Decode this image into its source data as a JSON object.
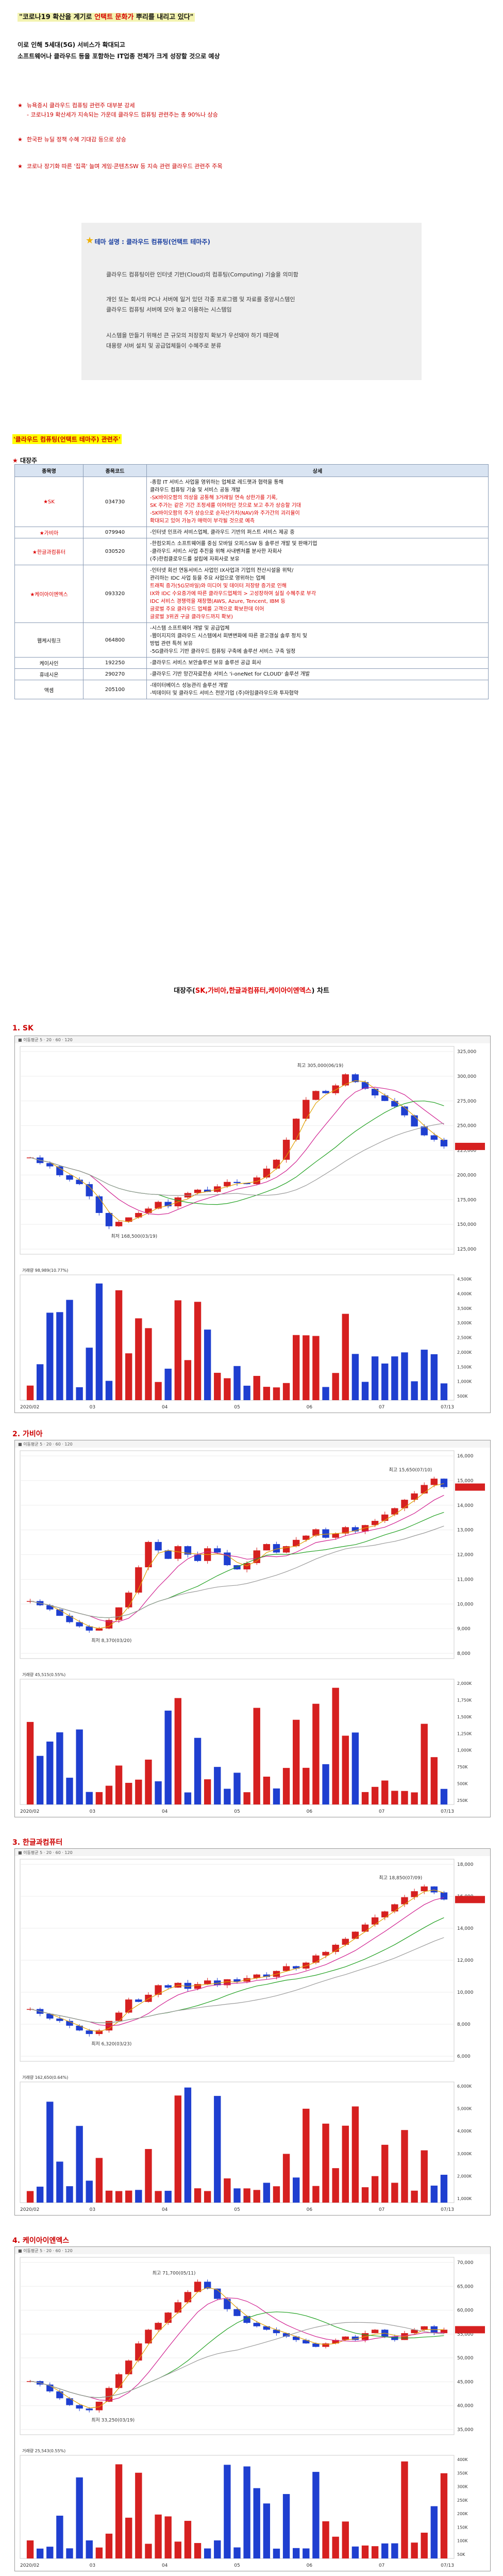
{
  "header": {
    "headline_pre": "\"코로나19 확산을 계기로 ",
    "headline_red": "언택트 문화가",
    "headline_post": " 뿌리를 내리고 있다\"",
    "intro_line1": "이로 인해 5세대(5G) 서비스가 확대되고",
    "intro_line2": "소프트웨어나 클라우드 등을 포함하는 IT업종 전체가 크게 성장할 것으로 예상"
  },
  "bullets": [
    {
      "text": "뉴욕증시 클라우드 컴퓨팅 관련주 대부분 강세",
      "sub": "- 코로나19 확산세가 지속되는 가운데 클라우드 컴퓨팅 관련주는 총 90%나 상승"
    },
    {
      "text": "한국판 뉴딜 정책 수혜 기대감 등으로 상승",
      "sub": ""
    },
    {
      "text": "코로나 장기화 따른 '집콕' 늘며 게임·콘텐츠SW 등 지속 관련 클라우드 관련주 주목",
      "sub": ""
    }
  ],
  "theme": {
    "title_label": "테마 설명 : 클라우드 컴퓨팅(언택트 테마주)",
    "p1": "클라우드 컴퓨팅이란 인터넷 기반(Cloud)의 컴퓨팅(Computing) 기술을 의미함",
    "p2a": "개인 또는 회사의 PC나 서버에 일거 있던 각종 프로그램 및 자료를 중앙시스템인",
    "p2b": "클라우드 컴퓨팅 서버에 모아 놓고 이용하는 시스템임",
    "p3a": "시스템을 만들기 위해선 큰 규모의 저장장치 확보가 우선돼야 하기 때문에",
    "p3b": "대용량 서버 설치 및 공급업체들이 수혜주로 분류"
  },
  "section": {
    "header": "'클라우드 컴퓨팅(언택트 테마주) 관련주'",
    "table_label": "대장주"
  },
  "table": {
    "headers": [
      "종목명",
      "종목코드",
      "상세"
    ],
    "rows": [
      {
        "name": "SK",
        "code": "034730",
        "red": true,
        "lines": [
          {
            "t": "-종합 IT 서비스 사업을 영위하는 업체로 레드햇과 협력을 통해",
            "r": false
          },
          {
            "t": "클라우드 컴퓨팅 기술 및 서비스 공동 개발",
            "r": false
          },
          {
            "t": "-SK바이오팜의 의상을 공통해 3거래일 연속 상한가를 기록,",
            "r": true
          },
          {
            "t": "SK 주가는 같은 기간 조정세를 이어하던 것으로 보고 추가 상승할 기대",
            "r": true
          },
          {
            "t": "-SK바이오팜의 주가 상승으로 순자산가치(NAV)와 주가간의 괴리율이",
            "r": true
          },
          {
            "t": "확대되고 있어 가능가 매력이 부각될 것으로 예측",
            "r": true
          }
        ]
      },
      {
        "name": "가비아",
        "code": "079940",
        "red": true,
        "lines": [
          {
            "t": "-인터넷 인프라 서비스업체, 클라우드 기반의 퍼스트 서비스 제공 중",
            "r": false
          }
        ]
      },
      {
        "name": "한글과컴퓨터",
        "code": "030520",
        "red": true,
        "lines": [
          {
            "t": "-한컴오피스 소프트웨어를 중심 모바일 오피스SW 등 솔루션 개발 및 판매기업",
            "r": false
          },
          {
            "t": "-클라우드 서비스 사업 추진을 위해 사내벤처를 분사한 자회사",
            "r": false
          },
          {
            "t": "(주)한컴클로우드를 설립에 자회사로 보유",
            "r": false
          }
        ]
      },
      {
        "name": "케이아이엔엑스",
        "code": "093320",
        "red": true,
        "lines": [
          {
            "t": "-인터넷 회선 연동서비스 사업인 IX사업과 기업의 전산시설을 위탁/",
            "r": false
          },
          {
            "t": "관리하는 IDC 사업 등을 주요 사업으로 영위하는 업체",
            "r": false
          },
          {
            "t": "트래픽 증가(5G모바일)와 미디어 및 데이터 저장량 증가로 인해",
            "r": true
          },
          {
            "t": "IX와 IDC 수요증가에 따른 클라우드업체의 > 고성장하여 실질 수혜주로 부각",
            "r": true
          },
          {
            "t": "IDC 서비스 경쟁력을 재창했(AWS, Azure, Tencent, IBM 등",
            "r": true
          },
          {
            "t": "글로벌 주요 클라우드 업체를 고객으로 확보한데 이어",
            "r": true
          },
          {
            "t": "글로벌 3위권 구글 클라우드까지 확보)",
            "r": true
          }
        ]
      },
      {
        "name": "웹케시링크",
        "code": "064800",
        "red": false,
        "lines": [
          {
            "t": "-시스템 소프트웨어 개발 및 공급업체",
            "r": false
          },
          {
            "t": "-웹이지지의 클라우드 시스템에서 회변변화에 따른 광고갱실 솔루 정치 및",
            "r": false
          },
          {
            "t": "방법 관련 특허 보유",
            "r": false
          },
          {
            "t": "-5G클라우드 기반 클라우드 컴퓨팅 구축에 솔루션 서비스 구축 일정",
            "r": false
          }
        ]
      },
      {
        "name": "케이사인",
        "code": "192250",
        "red": false,
        "lines": [
          {
            "t": "-클라우드 서비스 보안솔루션 보유 솔루션 공급 회사",
            "r": false
          }
        ]
      },
      {
        "name": "휴네시온",
        "code": "290270",
        "red": false,
        "lines": [
          {
            "t": "-클라우드 기반 망간자료전송 서비스 'i-oneNet for CLOUD' 솔루션 개발",
            "r": false
          }
        ]
      },
      {
        "name": "액셈",
        "code": "205100",
        "red": false,
        "lines": [
          {
            "t": "-데이터베이스 성능관리 솔루션 개발",
            "r": false
          },
          {
            "t": "-빅데이터 및 클라우드 서비스 전문기업 (주)아임클라우드와 투자협약",
            "r": false
          }
        ]
      }
    ]
  },
  "chart_section": {
    "title_pre": "대장주(",
    "title_red": "SK,가비아,한글과컴퓨터,케이아이엔엑스",
    "title_post": ") 차트"
  },
  "chart_data": [
    {
      "type": "line",
      "title": "1. SK",
      "price_hi_label": "최고 305,000(06/19)",
      "price_lo_label": "최저 168,500(03/19)",
      "volume_label": "98,989(10.77%)",
      "y_ticks": [
        "325,000",
        "300,000",
        "275,000",
        "250,000",
        "225,000",
        "200,000",
        "175,000",
        "150,000",
        "125,000"
      ],
      "vol_ticks": [
        "4,500K",
        "4,000K",
        "3,500K",
        "3,000K",
        "2,500K",
        "2,000K",
        "1,500K",
        "1,000K",
        "500K"
      ],
      "x_labels": [
        "2020/02",
        "03",
        "04",
        "05",
        "06",
        "07",
        "07/13"
      ],
      "close": [
        230,
        225,
        222,
        214,
        210,
        206,
        195,
        180,
        168,
        172,
        176,
        180,
        184,
        190,
        186,
        194,
        198,
        201,
        199,
        204,
        208,
        207,
        206,
        212,
        220,
        228,
        246,
        265,
        282,
        290,
        288,
        295,
        305,
        298,
        292,
        286,
        281,
        276,
        268,
        258,
        250,
        246,
        240
      ]
    },
    {
      "type": "line",
      "title": "2. 가비아",
      "price_hi_label": "최고 15,650(07/10)",
      "price_lo_label": "최저 8,370(03/20)",
      "volume_label": "45,515(0.55%)",
      "y_ticks": [
        "16,000",
        "15,000",
        "14,000",
        "13,000",
        "12,000",
        "11,000",
        "10,000",
        "9,000",
        "8,000"
      ],
      "vol_ticks": [
        "2,000K",
        "1,750K",
        "1,500K",
        "1,250K",
        "1,000K",
        "750K",
        "500K",
        "250K"
      ],
      "x_labels": [
        "2020/02",
        "03",
        "04",
        "05",
        "06",
        "07",
        "07/13"
      ],
      "close": [
        9.8,
        9.6,
        9.4,
        9.1,
        8.8,
        8.6,
        8.4,
        8.5,
        8.9,
        9.5,
        10.2,
        11.4,
        12.6,
        12.2,
        11.8,
        12.4,
        12.0,
        11.7,
        12.3,
        12.1,
        11.5,
        11.3,
        11.6,
        12.2,
        12.5,
        12.1,
        12.4,
        12.7,
        12.9,
        13.2,
        12.8,
        13.0,
        13.3,
        13.1,
        13.4,
        13.6,
        13.9,
        14.2,
        14.6,
        14.9,
        15.3,
        15.6,
        15.2
      ]
    },
    {
      "type": "line",
      "title": "3. 한글과컴퓨터",
      "price_hi_label": "최고 18,850(07/09)",
      "price_lo_label": "최저 6,320(03/23)",
      "volume_label": "162,650(0.64%)",
      "y_ticks": [
        "18,000",
        "16,000",
        "14,000",
        "12,000",
        "10,000",
        "8,000",
        "6,000"
      ],
      "vol_ticks": [
        "6,000K",
        "5,000K",
        "4,000K",
        "3,000K",
        "2,000K",
        "1,000K"
      ],
      "x_labels": [
        "2020/02",
        "03",
        "04",
        "05",
        "06",
        "07",
        "07/13"
      ],
      "close": [
        8.4,
        8.0,
        7.6,
        7.4,
        7.0,
        6.6,
        6.3,
        6.6,
        7.4,
        8.1,
        9.2,
        9.0,
        9.6,
        10.4,
        10.2,
        10.6,
        10.1,
        10.5,
        10.8,
        10.4,
        10.9,
        10.7,
        11.0,
        11.3,
        11.1,
        11.6,
        12.0,
        11.8,
        12.3,
        12.9,
        13.2,
        13.8,
        14.3,
        14.9,
        15.5,
        16.1,
        16.6,
        17.2,
        17.8,
        18.3,
        18.7,
        18.2,
        17.6
      ]
    },
    {
      "type": "line",
      "title": "4. 케이아이엔엑스",
      "price_hi_label": "최고 71,700(05/11)",
      "price_lo_label": "최저 33,250(03/19)",
      "volume_label": "25,543(0.55%)",
      "y_ticks": [
        "70,000",
        "65,000",
        "60,000",
        "55,000",
        "50,000",
        "45,000",
        "40,000",
        "35,000"
      ],
      "vol_ticks": [
        "400K",
        "350K",
        "300K",
        "250K",
        "200K",
        "150K",
        "100K",
        "50K"
      ],
      "x_labels": [
        "2020/02",
        "03",
        "04",
        "05",
        "06",
        "07",
        "07/13"
      ],
      "close": [
        42,
        41,
        39,
        37,
        35,
        34,
        33.5,
        36,
        40,
        44,
        48,
        53,
        57,
        59,
        62,
        65,
        68,
        71,
        69,
        66,
        63,
        61,
        59,
        58,
        57,
        56,
        55,
        54,
        53,
        52,
        53,
        54,
        55,
        54,
        56,
        57,
        55,
        54,
        56,
        57,
        58,
        56,
        57
      ]
    }
  ]
}
